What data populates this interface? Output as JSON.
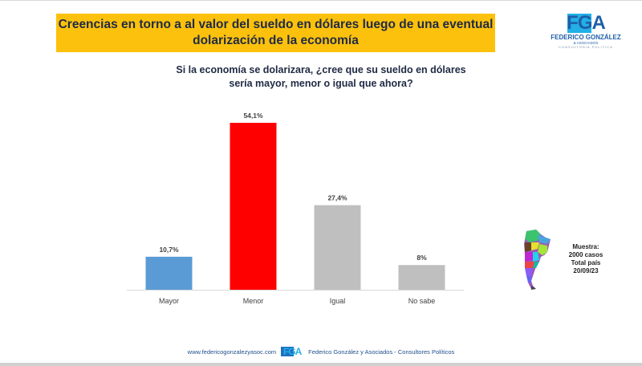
{
  "header": {
    "title_line1": "Creencias en torno a al valor del sueldo en dólares luego de una eventual",
    "title_line2": "dolarización de la economía",
    "banner_color": "#fcc10d"
  },
  "logo": {
    "mark": "FGA",
    "name": "FEDERICO GONZÁLEZ",
    "sub1": "& ASOCIADOS",
    "sub2": "CONSULTORIA POLITICA"
  },
  "question": {
    "line1": "Si la economía se dolarizara, ¿cree que su sueldo en dólares",
    "line2": "sería mayor, menor o igual que ahora?"
  },
  "chart_data": {
    "type": "bar",
    "title": "Si la economía se dolarizara, ¿cree que su sueldo en dólares sería mayor, menor o igual que ahora?",
    "categories": [
      "Mayor",
      "Menor",
      "Igual",
      "No sabe"
    ],
    "values": [
      10.7,
      54.1,
      27.4,
      8
    ],
    "value_labels": [
      "10,7%",
      "54,1%",
      "27,4%",
      "8%"
    ],
    "colors": [
      "#5b9bd5",
      "#ff0000",
      "#bfbfbf",
      "#bfbfbf"
    ],
    "xlabel": "",
    "ylabel": "",
    "ylim": [
      0,
      54.1
    ],
    "grid": false,
    "unit": "%"
  },
  "sample": {
    "line1": "Muestra:",
    "line2": "2000 casos",
    "line3": "Total país",
    "line4": "20/09/23"
  },
  "footer": {
    "website": "www.federicogonzalezyasoc.com",
    "logo_mark": "FGA",
    "company": "Federico González y Asociados - Consultores Políticos"
  }
}
